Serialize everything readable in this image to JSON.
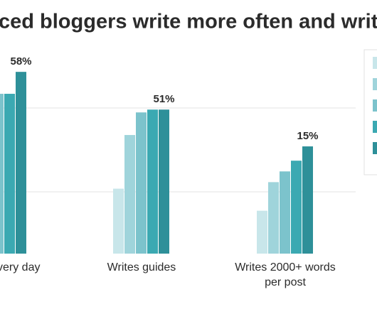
{
  "chart_data": [
    {
      "type": "bar",
      "title": "ced bloggers write more often and writ",
      "label": [
        "very day"
      ],
      "values": [
        51,
        51,
        58
      ],
      "value_labels": [
        null,
        null,
        "58%"
      ],
      "colors": [
        "#7cc3cc",
        "#3ba9b2",
        "#2e9099"
      ],
      "ylim": [
        0,
        73
      ]
    },
    {
      "type": "bar",
      "label": [
        "Writes guides"
      ],
      "values": [
        23,
        42,
        50,
        51,
        51
      ],
      "value_labels": [
        null,
        null,
        null,
        null,
        "51%"
      ],
      "colors": [
        "#c8e6ea",
        "#9fd4db",
        "#7cc3cc",
        "#3ba9b2",
        "#2e9099"
      ],
      "ylim": [
        0,
        81
      ]
    },
    {
      "type": "bar",
      "label": [
        "Writes 2000+ words",
        "per post"
      ],
      "values": [
        6,
        10,
        11.5,
        13,
        15
      ],
      "value_labels": [
        null,
        null,
        null,
        null,
        "15%"
      ],
      "colors": [
        "#c8e6ea",
        "#9fd4db",
        "#7cc3cc",
        "#3ba9b2",
        "#2e9099"
      ],
      "ylim": [
        0,
        32
      ]
    }
  ]
}
